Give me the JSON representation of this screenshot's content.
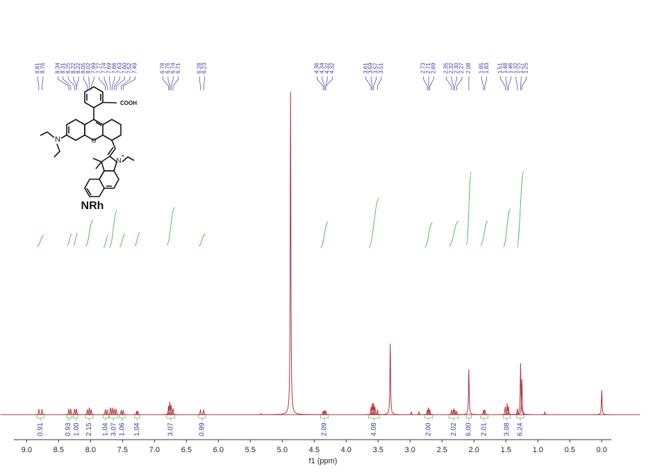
{
  "chart_data": {
    "type": "nmr",
    "x_label": "f1 (ppm)",
    "xlim": [
      9.2,
      -0.15
    ],
    "ylim": [
      0,
      100
    ],
    "xticks": [
      {
        "value": 9,
        "label": "9.0"
      },
      {
        "value": 8.5,
        "label": "8.5"
      },
      {
        "value": 8,
        "label": "8.0"
      },
      {
        "value": 7.5,
        "label": "7.5"
      },
      {
        "value": 7,
        "label": "7.0"
      },
      {
        "value": 6.5,
        "label": "6.5"
      },
      {
        "value": 6,
        "label": "6.0"
      },
      {
        "value": 5.5,
        "label": "5.5"
      },
      {
        "value": 5,
        "label": "5.0"
      },
      {
        "value": 4.5,
        "label": "4.5"
      },
      {
        "value": 4,
        "label": "4.0"
      },
      {
        "value": 3.5,
        "label": "3.5"
      },
      {
        "value": 3,
        "label": "3.0"
      },
      {
        "value": 2.5,
        "label": "2.5"
      },
      {
        "value": 2,
        "label": "2.0"
      },
      {
        "value": 1.5,
        "label": "1.5"
      },
      {
        "value": 1,
        "label": "1.0"
      },
      {
        "value": 0.5,
        "label": "0.5"
      },
      {
        "value": 0,
        "label": "0.0"
      }
    ],
    "color": "#b0303c",
    "integral_color": "#5cb85c",
    "label_color": "#3a3aa8",
    "peaks": {
      "ppm": [
        8.81,
        8.76,
        8.34,
        8.31,
        8.25,
        8.22,
        8.05,
        8.02,
        7.99,
        7.77,
        7.74,
        7.69,
        7.66,
        7.63,
        7.6,
        7.52,
        7.49,
        7.28,
        7.26,
        6.78,
        6.76,
        6.74,
        6.71,
        6.28,
        6.23,
        5.33,
        4.87,
        4.36,
        4.34,
        4.32,
        3.61,
        3.59,
        3.57,
        3.55,
        3.51,
        3.31,
        2.98,
        2.86,
        2.73,
        2.71,
        2.69,
        2.35,
        2.32,
        2.3,
        2.27,
        2.08,
        1.85,
        1.83,
        1.51,
        1.48,
        1.46,
        1.32,
        1.27,
        1.25,
        0.89,
        0.0
      ],
      "height": [
        1.7,
        1.7,
        1.8,
        1.8,
        1.8,
        1.8,
        1.6,
        2.2,
        1.6,
        1.6,
        1.6,
        2.2,
        2.2,
        1.8,
        1.8,
        1.4,
        1.4,
        1.0,
        1.0,
        2.7,
        4.0,
        3.0,
        2.0,
        1.6,
        1.6,
        0.3,
        100,
        1.0,
        1.3,
        1.3,
        2.5,
        3.6,
        3.6,
        2.5,
        1.5,
        22,
        0.8,
        0.8,
        1.5,
        2.2,
        1.5,
        1.5,
        1.8,
        1.5,
        1.0,
        14,
        1.4,
        1.6,
        2.5,
        3.5,
        2.5,
        1.8,
        16,
        11,
        0.8,
        7.6
      ]
    },
    "peak_labels": [
      {
        "value": 8.81,
        "label": "8.81"
      },
      {
        "value": 8.76,
        "label": "8.76"
      },
      {
        "value": 8.34,
        "label": "8.34"
      },
      {
        "value": 8.31,
        "label": "8.31"
      },
      {
        "value": 8.25,
        "label": "8.25"
      },
      {
        "value": 8.22,
        "label": "8.22"
      },
      {
        "value": 8.22,
        "label": "8.22"
      },
      {
        "value": 8.05,
        "label": "8.05"
      },
      {
        "value": 8.02,
        "label": "8.02"
      },
      {
        "value": 7.99,
        "label": "7.99"
      },
      {
        "value": 7.77,
        "label": "7.77"
      },
      {
        "value": 7.74,
        "label": "7.74"
      },
      {
        "value": 7.69,
        "label": "7.69"
      },
      {
        "value": 7.66,
        "label": "7.66"
      },
      {
        "value": 7.63,
        "label": "7.63"
      },
      {
        "value": 7.6,
        "label": "7.60"
      },
      {
        "value": 7.52,
        "label": "7.52"
      },
      {
        "value": 7.49,
        "label": "7.49"
      },
      {
        "value": 6.78,
        "label": "6.78"
      },
      {
        "value": 6.76,
        "label": "6.76"
      },
      {
        "value": 6.74,
        "label": "6.74"
      },
      {
        "value": 6.71,
        "label": "6.71"
      },
      {
        "value": 6.28,
        "label": "6.28"
      },
      {
        "value": 6.23,
        "label": "6.23"
      },
      {
        "value": 4.36,
        "label": "4.36"
      },
      {
        "value": 4.34,
        "label": "4.34"
      },
      {
        "value": 4.32,
        "label": "4.32"
      },
      {
        "value": 4.32,
        "label": "4.32"
      },
      {
        "value": 3.61,
        "label": "3.61"
      },
      {
        "value": 3.59,
        "label": "3.59"
      },
      {
        "value": 3.57,
        "label": "3.57"
      },
      {
        "value": 3.51,
        "label": "3.51"
      },
      {
        "value": 2.73,
        "label": "2.73"
      },
      {
        "value": 2.71,
        "label": "2.71"
      },
      {
        "value": 2.69,
        "label": "2.69"
      },
      {
        "value": 2.35,
        "label": "2.35"
      },
      {
        "value": 2.32,
        "label": "2.32"
      },
      {
        "value": 2.3,
        "label": "2.30"
      },
      {
        "value": 2.27,
        "label": "2.27"
      },
      {
        "value": 2.08,
        "label": "2.08"
      },
      {
        "value": 1.85,
        "label": "1.85"
      },
      {
        "value": 1.83,
        "label": "1.83"
      },
      {
        "value": 1.51,
        "label": "1.51"
      },
      {
        "value": 1.48,
        "label": "1.48"
      },
      {
        "value": 1.46,
        "label": "1.46"
      },
      {
        "value": 1.32,
        "label": "1.32"
      },
      {
        "value": 1.27,
        "label": "1.27"
      },
      {
        "value": 1.25,
        "label": "1.25"
      }
    ],
    "integrals": [
      {
        "value": 0.91,
        "label": "0.91",
        "from": 8.84,
        "to": 8.73
      },
      {
        "value": 0.93,
        "label": "0.93",
        "from": 8.37,
        "to": 8.29
      },
      {
        "value": 1.0,
        "label": "1.00",
        "from": 8.27,
        "to": 8.2
      },
      {
        "value": 2.15,
        "label": "2.15",
        "from": 8.08,
        "to": 7.96
      },
      {
        "value": 1.04,
        "label": "1.04",
        "from": 7.8,
        "to": 7.72
      },
      {
        "value": 3.07,
        "label": "3.07",
        "from": 7.71,
        "to": 7.58
      },
      {
        "value": 1.06,
        "label": "1.06",
        "from": 7.55,
        "to": 7.46
      },
      {
        "value": 1.04,
        "label": "1.04",
        "from": 7.31,
        "to": 7.23
      },
      {
        "value": 3.07,
        "label": "3.07",
        "from": 6.81,
        "to": 6.68
      },
      {
        "value": 0.99,
        "label": "0.99",
        "from": 6.31,
        "to": 6.2
      },
      {
        "value": 2.09,
        "label": "2.09",
        "from": 4.4,
        "to": 4.28
      },
      {
        "value": 4.08,
        "label": "4.08",
        "from": 3.65,
        "to": 3.48
      },
      {
        "value": 2.0,
        "label": "2.00",
        "from": 2.77,
        "to": 2.65
      },
      {
        "value": 2.02,
        "label": "2.02",
        "from": 2.39,
        "to": 2.24
      },
      {
        "value": 6.0,
        "label": "6.00",
        "from": 2.12,
        "to": 2.04
      },
      {
        "value": 2.01,
        "label": "2.01",
        "from": 1.9,
        "to": 1.78
      },
      {
        "value": 3.08,
        "label": "3.08",
        "from": 1.54,
        "to": 1.43
      },
      {
        "value": 6.24,
        "label": "6.24",
        "from": 1.33,
        "to": 1.22
      }
    ]
  },
  "structure": {
    "substituent": "COOH",
    "amine": "N",
    "indolium_n": "N",
    "charge": "+",
    "name": "NRh"
  }
}
